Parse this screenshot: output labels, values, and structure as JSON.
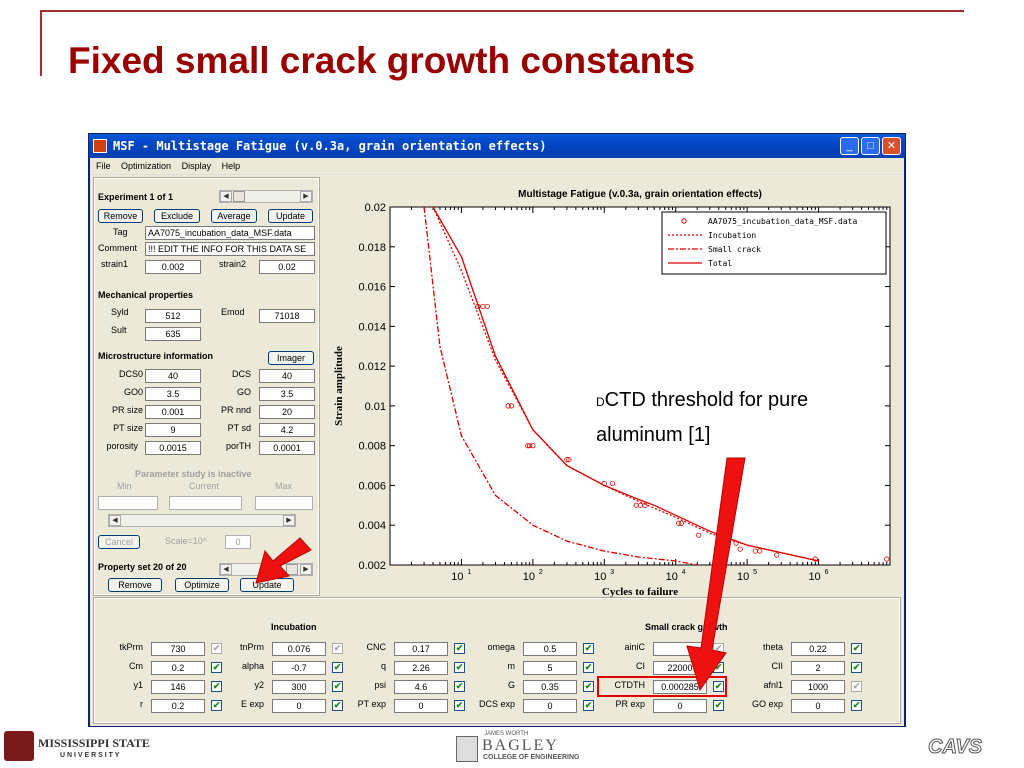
{
  "slide_title": "Fixed small crack growth constants",
  "window": {
    "title": "MSF - Multistage Fatigue (v.0.3a, grain orientation effects)",
    "min": "_",
    "max": "□",
    "close": "✕"
  },
  "menu": [
    "File",
    "Optimization",
    "Display",
    "Help"
  ],
  "experiment": {
    "label": "Experiment 1 of 1",
    "remove": "Remove",
    "exclude": "Exclude",
    "average": "Average",
    "update": "Update",
    "tag_label": "Tag",
    "tag_value": "AA7075_incubation_data_MSF.data",
    "comment_label": "Comment",
    "comment_value": "!!! EDIT THE INFO FOR THIS DATA SE",
    "strain1_label": "strain1",
    "strain1": "0.002",
    "strain2_label": "strain2",
    "strain2": "0.02"
  },
  "mech": {
    "label": "Mechanical properties",
    "syld_label": "Syld",
    "syld": "512",
    "emod_label": "Emod",
    "emod": "71018",
    "sult_label": "Sult",
    "sult": "635"
  },
  "micro": {
    "label": "Microstructure information",
    "imager": "Imager",
    "rows": [
      {
        "l1": "DCS0",
        "v1": "40",
        "l2": "DCS",
        "v2": "40"
      },
      {
        "l1": "GO0",
        "v1": "3.5",
        "l2": "GO",
        "v2": "3.5"
      },
      {
        "l1": "PR size",
        "v1": "0.001",
        "l2": "PR nnd",
        "v2": "20"
      },
      {
        "l1": "PT size",
        "v1": "9",
        "l2": "PT sd",
        "v2": "4.2"
      },
      {
        "l1": "porosity",
        "v1": "0.0015",
        "l2": "porTH",
        "v2": "0.0001"
      }
    ]
  },
  "param": {
    "label": "Parameter study is inactive",
    "min": "Min",
    "current": "Current",
    "max": "Max",
    "cancel": "Cancel",
    "scale": "Scale=10^",
    "scale_value": "0"
  },
  "propset": {
    "label": "Property set 20 of 20",
    "remove": "Remove",
    "optimize": "Optimize",
    "update": "Update"
  },
  "incubation": {
    "label": "Incubation",
    "rows": [
      {
        "l1": "tkPrm",
        "v1": "730",
        "c1": "off",
        "l2": "tnPrm",
        "v2": "0.076",
        "c2": "off",
        "l3": "CNC",
        "v3": "0.17",
        "c3": "on"
      },
      {
        "l1": "Cm",
        "v1": "0.2",
        "c1": "on",
        "l2": "alpha",
        "v2": "-0.7",
        "c2": "on",
        "l3": "q",
        "v3": "2.26",
        "c3": "on"
      },
      {
        "l1": "y1",
        "v1": "146",
        "c1": "on",
        "l2": "y2",
        "v2": "300",
        "c2": "on",
        "l3": "psi",
        "v3": "4.6",
        "c3": "on"
      },
      {
        "l1": "r",
        "v1": "0.2",
        "c1": "on",
        "l2": "E exp",
        "v2": "0",
        "c2": "on",
        "l3": "PT exp",
        "v3": "0",
        "c3": "on"
      }
    ]
  },
  "smallcrack": {
    "label": "Small crack growth",
    "rows": [
      {
        "l1": "omega",
        "v1": "0.5",
        "c1": "on",
        "l2": "ainiC",
        "v2": "",
        "c2": "off",
        "l3": "theta",
        "v3": "0.22",
        "c3": "on"
      },
      {
        "l1": "m",
        "v1": "5",
        "c1": "on",
        "l2": "CI",
        "v2": "22000",
        "c2": "on",
        "l3": "CII",
        "v3": "2",
        "c3": "on"
      },
      {
        "l1": "G",
        "v1": "0.35",
        "c1": "on",
        "l2": "CTDTH",
        "v2": "0.000285",
        "c2": "on",
        "l3": "afnl1",
        "v3": "1000",
        "c3": "off"
      },
      {
        "l1": "DCS exp",
        "v1": "0",
        "c1": "on",
        "l2": "PR exp",
        "v2": "0",
        "c2": "on",
        "l3": "GO exp",
        "v3": "0",
        "c3": "on"
      }
    ]
  },
  "chart_data": {
    "type": "scatter",
    "title": "Multistage Fatigue (v.0.3a, grain orientation effects)",
    "xlabel": "Cycles to failure",
    "ylabel": "Strain amplitude",
    "xscale": "log",
    "xlim": [
      1,
      10000000
    ],
    "ylim": [
      0.002,
      0.02
    ],
    "yticks": [
      "0.002",
      "0.004",
      "0.006",
      "0.008",
      "0.01",
      "0.012",
      "0.014",
      "0.016",
      "0.018",
      "0.02"
    ],
    "xticks": [
      {
        "base": "10",
        "exp": "1"
      },
      {
        "base": "10",
        "exp": "2"
      },
      {
        "base": "10",
        "exp": "3"
      },
      {
        "base": "10",
        "exp": "4"
      },
      {
        "base": "10",
        "exp": "5"
      },
      {
        "base": "10",
        "exp": "6"
      }
    ],
    "legend": [
      "AA7075_incubation_data_MSF.data",
      "Incubation",
      "Small crack",
      "Total"
    ],
    "legend_position": "top-right",
    "data_points": [
      [
        17,
        0.015
      ],
      [
        20,
        0.015
      ],
      [
        23,
        0.015
      ],
      [
        45,
        0.01
      ],
      [
        50,
        0.01
      ],
      [
        85,
        0.008
      ],
      [
        90,
        0.008
      ],
      [
        100,
        0.008
      ],
      [
        300,
        0.0073
      ],
      [
        320,
        0.0073
      ],
      [
        1000,
        0.0061
      ],
      [
        1300,
        0.0061
      ],
      [
        2800,
        0.005
      ],
      [
        3200,
        0.005
      ],
      [
        3700,
        0.005
      ],
      [
        11000,
        0.0041
      ],
      [
        12000,
        0.0041
      ],
      [
        21000,
        0.0035
      ],
      [
        48000,
        0.0031
      ],
      [
        70000,
        0.0031
      ],
      [
        80000,
        0.0028
      ],
      [
        130000,
        0.0027
      ],
      [
        150000,
        0.0027
      ],
      [
        260000,
        0.0025
      ],
      [
        900000,
        0.0023
      ],
      [
        9000000,
        0.0023
      ]
    ],
    "total": [
      [
        4,
        0.02
      ],
      [
        10,
        0.0175
      ],
      [
        30,
        0.0125
      ],
      [
        100,
        0.0088
      ],
      [
        300,
        0.007
      ],
      [
        1000,
        0.006
      ],
      [
        3000,
        0.0053
      ],
      [
        5000,
        0.005
      ],
      [
        10000,
        0.0045
      ],
      [
        30000,
        0.0037
      ],
      [
        100000,
        0.003
      ],
      [
        1000000,
        0.0022
      ]
    ],
    "incubation": [
      [
        4,
        0.02
      ],
      [
        10,
        0.0168
      ],
      [
        30,
        0.0123
      ],
      [
        100,
        0.0088
      ],
      [
        300,
        0.007
      ],
      [
        1000,
        0.006
      ],
      [
        3000,
        0.0052
      ],
      [
        10000,
        0.0044
      ],
      [
        30000,
        0.0036
      ],
      [
        100000,
        0.003
      ],
      [
        1000000,
        0.0022
      ]
    ],
    "small_crack": [
      [
        3,
        0.02
      ],
      [
        5,
        0.013
      ],
      [
        10,
        0.0085
      ],
      [
        30,
        0.0055
      ],
      [
        100,
        0.004
      ],
      [
        300,
        0.0032
      ],
      [
        1000,
        0.0027
      ],
      [
        3000,
        0.0024
      ],
      [
        10000,
        0.0022
      ],
      [
        20000,
        0.002
      ]
    ]
  },
  "annotation": {
    "prefix": "D",
    "text": "CTD threshold for pure",
    "text2": "aluminum [1]"
  },
  "footer": {
    "ms_name": "MISSISSIPPI STATE",
    "ms_univ": "U N I V E R S I T Y",
    "bagley_top": "JAMES WORTH",
    "bagley": "BAGLEY",
    "bagley_sub": "COLLEGE OF ENGINEERING",
    "cavs": "CAVS"
  },
  "colors": {
    "title": "#990000",
    "arrow": "#ee1111",
    "highlight": "#e00000",
    "curve": "#dd0000"
  }
}
